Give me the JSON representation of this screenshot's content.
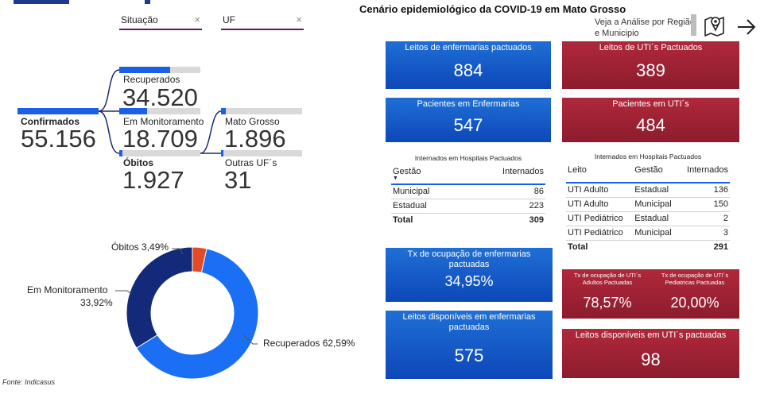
{
  "filters": {
    "situacao": {
      "label": "Situação",
      "clear": "×"
    },
    "uf": {
      "label": "UF",
      "clear": "×"
    }
  },
  "tree": {
    "confirmados": {
      "label": "Confirmados",
      "value": "55.156",
      "fill": 1.0
    },
    "recuperados": {
      "label": "Recuperados",
      "value": "34.520",
      "fill": 0.626
    },
    "em_monitoramento": {
      "label": "Em Monitoramento",
      "value": "18.709",
      "fill": 0.339
    },
    "obitos": {
      "label": "Óbitos",
      "value": "1.927",
      "fill": 0.035
    },
    "mato_grosso": {
      "label": "Mato Grosso",
      "value": "1.896",
      "fill": 0.984
    },
    "outras_uf": {
      "label": "Outras UF´s",
      "value": "31",
      "fill": 0.016
    }
  },
  "donut": {
    "slices": [
      {
        "name": "Recuperados",
        "percent": 62.59,
        "color": "#1a6ff5"
      },
      {
        "name": "Em Monitoramento",
        "percent": 33.92,
        "color": "#132a7a"
      },
      {
        "name": "Óbitos",
        "percent": 3.49,
        "color": "#e34b27"
      }
    ],
    "labels": {
      "obitos": "Óbitos 3,49%",
      "monitoramento_line1": "Em Monitoramento",
      "monitoramento_line2": "33,92%",
      "recuperados": "Recuperados 62,59%"
    }
  },
  "source": "Fonte: Indicasus",
  "dashboard": {
    "title": "Cenário epidemiológico da COVID-19 em Mato Grosso",
    "nav_line1": "Veja a Análise por Região",
    "nav_line2": "e Municipio",
    "cards": {
      "leitos_enf": {
        "title": "Leitos de enfermarias pactuados",
        "value": "884"
      },
      "leitos_uti": {
        "title": "Leitos de UTI´s Pactuados",
        "value": "389"
      },
      "pac_enf": {
        "title": "Pacientes em Enfermarias",
        "value": "547"
      },
      "pac_uti": {
        "title": "Pacientes em UTI´s",
        "value": "484"
      },
      "tx_enf": {
        "title": "Tx de ocupação de enfermarias pactuadas",
        "value": "34,95%"
      },
      "tx_uti_adulto": {
        "title": "Tx de ocupação de UTI´s Adultos Pactuadas",
        "value": "78,57%"
      },
      "tx_uti_ped": {
        "title": "Tx de ocupação de UTI´s Pediatricas Pactuadas",
        "value": "20,00%"
      },
      "disp_enf": {
        "title": "Leitos disponíveis em enfermarias pactuadas",
        "value": "575"
      },
      "disp_uti": {
        "title": "Leitos disponíveis em UTI´s pactuadas",
        "value": "98"
      }
    },
    "table_left": {
      "title": "Internados em Hospitais Pactuados",
      "headers": [
        "Gestão",
        "Internados"
      ],
      "rows": [
        [
          "Municipal",
          "86"
        ],
        [
          "Estadual",
          "223"
        ]
      ],
      "total": [
        "Total",
        "309"
      ]
    },
    "table_right": {
      "title": "Internados em Hospitais Pactuados",
      "headers": [
        "Leito",
        "Gestão",
        "Internados"
      ],
      "rows": [
        [
          "UTI Adulto",
          "Estadual",
          "136"
        ],
        [
          "UTI Adulto",
          "Municipal",
          "150"
        ],
        [
          "UTI Pediátrico",
          "Estadual",
          "2"
        ],
        [
          "UTI Pediátrico",
          "Municipal",
          "3"
        ]
      ],
      "total": [
        "Total",
        "",
        "291"
      ]
    }
  }
}
